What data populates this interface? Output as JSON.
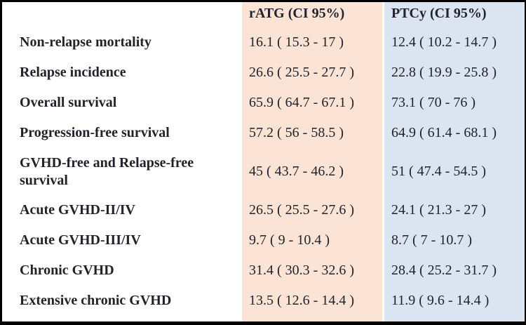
{
  "colors": {
    "ratg_bg": "#fbe4d5",
    "ptcy_bg": "#dbe5f1",
    "divider": "#ffffff",
    "text": "#22222a",
    "border": "#000000"
  },
  "table": {
    "header": {
      "outcome": "",
      "ratg": "rATG (CI 95%)",
      "ptcy": "PTCy (CI 95%)"
    },
    "rows": [
      {
        "label": "Non-relapse mortality",
        "ratg": "16.1 ( 15.3 - 17 )",
        "ptcy": "12.4 ( 10.2 - 14.7 )"
      },
      {
        "label": "Relapse incidence",
        "ratg": "26.6 ( 25.5 - 27.7 )",
        "ptcy": "22.8 ( 19.9 - 25.8 )"
      },
      {
        "label": "Overall survival",
        "ratg": "65.9 ( 64.7 - 67.1 )",
        "ptcy": "73.1 ( 70 - 76 )"
      },
      {
        "label": "Progression-free survival",
        "ratg": "57.2 ( 56 - 58.5 )",
        "ptcy": "64.9 ( 61.4 - 68.1 )"
      },
      {
        "label": "GVHD-free and Relapse-free survival",
        "ratg": "45 ( 43.7 - 46.2 )",
        "ptcy": "51 ( 47.4 - 54.5 )"
      },
      {
        "label": "Acute GVHD-II/IV",
        "ratg": "26.5 ( 25.5 - 27.6 )",
        "ptcy": "24.1 ( 21.3 - 27 )"
      },
      {
        "label": "Acute GVHD-III/IV",
        "ratg": "9.7 ( 9 - 10.4 )",
        "ptcy": "8.7 ( 7 - 10.7 )"
      },
      {
        "label": "Chronic GVHD",
        "ratg": "31.4 ( 30.3 - 32.6 )",
        "ptcy": "28.4 ( 25.2 - 31.7 )"
      },
      {
        "label": "Extensive chronic GVHD",
        "ratg": "13.5 ( 12.6 - 14.4 )",
        "ptcy": "11.9 ( 9.6 - 14.4 )"
      }
    ]
  },
  "chart_data": {
    "type": "table",
    "columns": [
      "",
      "rATG (CI 95%)",
      "PTCy (CI 95%)"
    ],
    "rows": [
      [
        "Non-relapse mortality",
        "16.1 ( 15.3 - 17 )",
        "12.4 ( 10.2 - 14.7 )"
      ],
      [
        "Relapse incidence",
        "26.6 ( 25.5 - 27.7 )",
        "22.8 ( 19.9 - 25.8 )"
      ],
      [
        "Overall survival",
        "65.9 ( 64.7 - 67.1 )",
        "73.1 ( 70 - 76 )"
      ],
      [
        "Progression-free survival",
        "57.2 ( 56 - 58.5 )",
        "64.9 ( 61.4 - 68.1 )"
      ],
      [
        "GVHD-free and Relapse-free survival",
        "45 ( 43.7 - 46.2 )",
        "51 ( 47.4 - 54.5 )"
      ],
      [
        "Acute GVHD-II/IV",
        "26.5 ( 25.5 - 27.6 )",
        "24.1 ( 21.3 - 27 )"
      ],
      [
        "Acute GVHD-III/IV",
        "9.7 ( 9 - 10.4 )",
        "8.7 ( 7 - 10.7 )"
      ],
      [
        "Chronic GVHD",
        "31.4 ( 30.3 - 32.6 )",
        "28.4 ( 25.2 - 31.7 )"
      ],
      [
        "Extensive chronic GVHD",
        "13.5 ( 12.6 - 14.4 )",
        "11.9 ( 9.6 - 14.4 )"
      ]
    ],
    "numeric": {
      "outcomes": [
        "Non-relapse mortality",
        "Relapse incidence",
        "Overall survival",
        "Progression-free survival",
        "GVHD-free and Relapse-free survival",
        "Acute GVHD-II/IV",
        "Acute GVHD-III/IV",
        "Chronic GVHD",
        "Extensive chronic GVHD"
      ],
      "series": [
        {
          "name": "rATG",
          "estimates": [
            16.1,
            26.6,
            65.9,
            57.2,
            45,
            26.5,
            9.7,
            31.4,
            13.5
          ],
          "ci_low": [
            15.3,
            25.5,
            64.7,
            56,
            43.7,
            25.5,
            9,
            30.3,
            12.6
          ],
          "ci_high": [
            17,
            27.7,
            67.1,
            58.5,
            46.2,
            27.6,
            10.4,
            32.6,
            14.4
          ]
        },
        {
          "name": "PTCy",
          "estimates": [
            12.4,
            22.8,
            73.1,
            64.9,
            51,
            24.1,
            8.7,
            28.4,
            11.9
          ],
          "ci_low": [
            10.2,
            19.9,
            70,
            61.4,
            47.4,
            21.3,
            7,
            25.2,
            9.6
          ],
          "ci_high": [
            14.7,
            25.8,
            76,
            68.1,
            54.5,
            27,
            10.7,
            31.7,
            14.4
          ]
        }
      ],
      "ci_level": "95%"
    }
  }
}
